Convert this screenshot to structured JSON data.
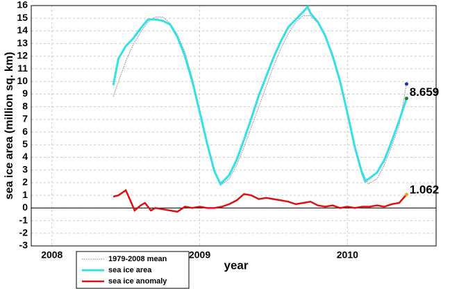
{
  "chart_data": {
    "type": "line",
    "ylabel": "sea ice area (million sq. km)",
    "xlabel": "year",
    "xlim": [
      2007.86,
      2010.6
    ],
    "xticks": [
      2008,
      2009,
      2010
    ],
    "ylim": [
      -3,
      16
    ],
    "yticks": [
      -3,
      -2,
      -1,
      0,
      1,
      2,
      3,
      4,
      5,
      6,
      7,
      8,
      9,
      10,
      11,
      12,
      13,
      14,
      15,
      16
    ],
    "grid": true,
    "legend": "bottom-left",
    "series": [
      {
        "name": "1979-2008 mean",
        "color": "#999999",
        "x": [
          2008.415,
          2008.45,
          2008.5,
          2008.55,
          2008.6,
          2008.65,
          2008.7,
          2008.75,
          2008.8,
          2008.85,
          2008.9,
          2008.95,
          2009.0,
          2009.05,
          2009.1,
          2009.14,
          2009.2,
          2009.25,
          2009.3,
          2009.35,
          2009.4,
          2009.45,
          2009.5,
          2009.55,
          2009.6,
          2009.65,
          2009.7,
          2009.75,
          2009.8,
          2009.85,
          2009.9,
          2009.95,
          2010.0,
          2010.05,
          2010.1,
          2010.14,
          2010.2,
          2010.25,
          2010.3,
          2010.35,
          2010.4
        ],
        "values": [
          8.8,
          10.0,
          11.6,
          12.9,
          13.9,
          14.7,
          15.1,
          15.1,
          14.6,
          13.7,
          12.3,
          10.3,
          7.8,
          5.0,
          2.9,
          1.8,
          2.3,
          3.4,
          4.8,
          6.4,
          8.0,
          9.6,
          11.2,
          12.6,
          13.8,
          14.7,
          15.2,
          15.2,
          14.6,
          13.6,
          12.2,
          10.2,
          7.7,
          5.0,
          2.9,
          1.9,
          2.3,
          3.4,
          4.9,
          6.5,
          9.8
        ],
        "end_marker_color": "#1030c0"
      },
      {
        "name": "sea ice area",
        "color": "#33e0e8",
        "x": [
          2008.415,
          2008.45,
          2008.5,
          2008.55,
          2008.6,
          2008.65,
          2008.7,
          2008.75,
          2008.8,
          2008.85,
          2008.9,
          2008.95,
          2009.0,
          2009.05,
          2009.1,
          2009.14,
          2009.2,
          2009.25,
          2009.3,
          2009.35,
          2009.4,
          2009.45,
          2009.5,
          2009.55,
          2009.6,
          2009.65,
          2009.7,
          2009.73,
          2009.75,
          2009.8,
          2009.85,
          2009.9,
          2009.95,
          2010.0,
          2010.05,
          2010.1,
          2010.12,
          2010.2,
          2010.25,
          2010.3,
          2010.35,
          2010.4
        ],
        "values": [
          9.7,
          11.8,
          12.8,
          13.4,
          14.2,
          14.9,
          14.9,
          14.8,
          14.5,
          13.5,
          12.0,
          10.0,
          7.6,
          5.1,
          2.9,
          1.9,
          2.6,
          3.8,
          5.4,
          7.1,
          8.9,
          10.4,
          11.9,
          13.2,
          14.3,
          14.9,
          15.5,
          15.9,
          15.4,
          14.7,
          13.6,
          12.0,
          10.0,
          7.5,
          4.8,
          2.7,
          2.1,
          2.8,
          3.8,
          5.3,
          6.9,
          8.659
        ],
        "end_marker_color": "#208020"
      },
      {
        "name": "sea ice anomaly",
        "color": "#dd1010",
        "x": [
          2008.415,
          2008.45,
          2008.5,
          2008.53,
          2008.56,
          2008.6,
          2008.63,
          2008.67,
          2008.7,
          2008.75,
          2008.8,
          2008.85,
          2008.9,
          2008.95,
          2009.0,
          2009.05,
          2009.1,
          2009.15,
          2009.2,
          2009.25,
          2009.3,
          2009.35,
          2009.4,
          2009.45,
          2009.5,
          2009.55,
          2009.6,
          2009.65,
          2009.7,
          2009.75,
          2009.8,
          2009.85,
          2009.9,
          2009.95,
          2010.0,
          2010.05,
          2010.1,
          2010.15,
          2010.2,
          2010.25,
          2010.3,
          2010.35,
          2010.4
        ],
        "values": [
          0.9,
          1.0,
          1.4,
          0.6,
          -0.2,
          0.2,
          0.4,
          -0.2,
          0.0,
          -0.1,
          -0.2,
          -0.3,
          0.1,
          0.0,
          0.1,
          0.0,
          0.0,
          0.1,
          0.3,
          0.6,
          1.1,
          1.0,
          0.7,
          0.8,
          0.7,
          0.6,
          0.5,
          0.3,
          0.4,
          0.5,
          0.2,
          0.1,
          0.2,
          0.0,
          0.1,
          0.0,
          0.1,
          0.1,
          0.2,
          0.1,
          0.3,
          0.4,
          1.062
        ],
        "end_marker_color": "#f0a020"
      }
    ],
    "annotations": [
      {
        "text": "8.659",
        "x": 2010.42,
        "y": 9.1,
        "color": "#999999"
      },
      {
        "text": "1.062",
        "x": 2010.42,
        "y": 1.4,
        "color": "#dd1010"
      }
    ]
  }
}
